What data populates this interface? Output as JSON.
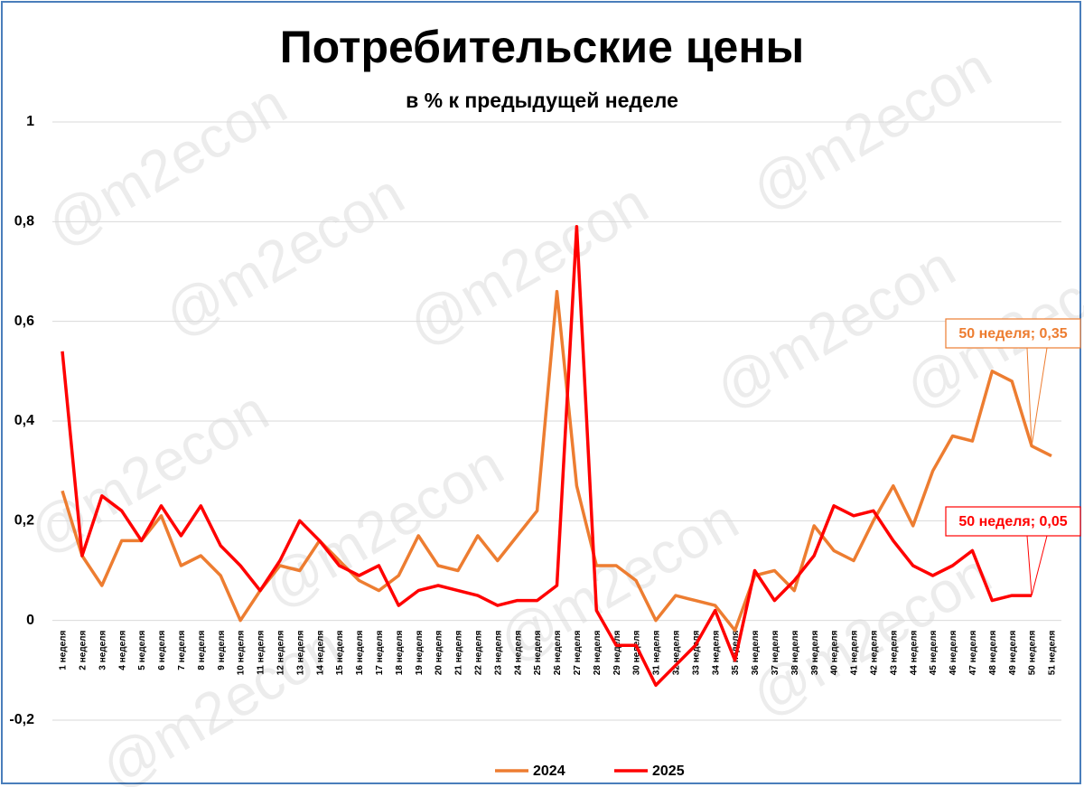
{
  "chart_data": {
    "type": "line",
    "title": "Потребительские цены",
    "subtitle": "в % к предыдущей неделе",
    "watermark": "@m2econ",
    "categories": [
      "1 неделя",
      "2 неделя",
      "3 неделя",
      "4 неделя",
      "5 неделя",
      "6 неделя",
      "7 неделя",
      "8 неделя",
      "9 неделя",
      "10 неделя",
      "11 неделя",
      "12 неделя",
      "13 неделя",
      "14 неделя",
      "15 неделя",
      "16 неделя",
      "17 неделя",
      "18 неделя",
      "19 неделя",
      "20 неделя",
      "21 неделя",
      "22 неделя",
      "23 неделя",
      "24 неделя",
      "25 неделя",
      "26 неделя",
      "27 неделя",
      "28 неделя",
      "29 неделя",
      "30 неделя",
      "31 неделя",
      "32 неделя",
      "33 неделя",
      "34 неделя",
      "35 неделя",
      "36 неделя",
      "37 неделя",
      "38 неделя",
      "39 неделя",
      "40 неделя",
      "41 неделя",
      "42 неделя",
      "43 неделя",
      "44 неделя",
      "45 неделя",
      "46 неделя",
      "47 неделя",
      "48 неделя",
      "49 неделя",
      "50 неделя",
      "51 неделя"
    ],
    "series": [
      {
        "name": "2024",
        "color": "#ed7d31",
        "values": [
          0.26,
          0.13,
          0.07,
          0.16,
          0.16,
          0.21,
          0.11,
          0.13,
          0.09,
          0.0,
          0.06,
          0.11,
          0.1,
          0.16,
          0.12,
          0.08,
          0.06,
          0.09,
          0.17,
          0.11,
          0.1,
          0.17,
          0.12,
          0.17,
          0.22,
          0.66,
          0.27,
          0.11,
          0.11,
          0.08,
          0.0,
          0.05,
          0.04,
          0.03,
          -0.02,
          0.09,
          0.1,
          0.06,
          0.19,
          0.14,
          0.12,
          0.2,
          0.27,
          0.19,
          0.3,
          0.37,
          0.36,
          0.5,
          0.48,
          0.35,
          0.33
        ],
        "value_labels": [
          null,
          null,
          null,
          null,
          null,
          null,
          null,
          null,
          null,
          null,
          null,
          null,
          null,
          null,
          null,
          null,
          null,
          null,
          null,
          null,
          null,
          null,
          null,
          null,
          null,
          null,
          null,
          null,
          null,
          null,
          null,
          null,
          null,
          null,
          null,
          null,
          null,
          null,
          null,
          null,
          null,
          null,
          null,
          null,
          null,
          null,
          null,
          null,
          null,
          "50 неделя; 0,35",
          null
        ]
      },
      {
        "name": "2025",
        "color": "#ff0000",
        "values": [
          0.54,
          0.13,
          0.25,
          0.22,
          0.16,
          0.23,
          0.17,
          0.23,
          0.15,
          0.11,
          0.06,
          0.12,
          0.2,
          0.16,
          0.11,
          0.09,
          0.11,
          0.03,
          0.06,
          0.07,
          0.06,
          0.05,
          0.03,
          0.04,
          0.04,
          0.07,
          0.79,
          0.02,
          -0.05,
          -0.05,
          -0.13,
          -0.09,
          -0.05,
          0.02,
          -0.08,
          0.1,
          0.04,
          0.08,
          0.13,
          0.23,
          0.21,
          0.22,
          0.16,
          0.11,
          0.09,
          0.11,
          0.14,
          0.04,
          0.05,
          0.05,
          null
        ],
        "value_labels": [
          null,
          null,
          null,
          null,
          null,
          null,
          null,
          null,
          null,
          null,
          null,
          null,
          null,
          null,
          null,
          null,
          null,
          null,
          null,
          null,
          null,
          null,
          null,
          null,
          null,
          null,
          null,
          null,
          null,
          null,
          null,
          null,
          null,
          null,
          null,
          null,
          null,
          null,
          null,
          null,
          null,
          null,
          null,
          null,
          null,
          null,
          null,
          null,
          null,
          "50 неделя; 0,05",
          null
        ]
      }
    ],
    "ylim": [
      -0.2,
      1
    ],
    "yticks": [
      {
        "value": -0.2,
        "label": "-0,2"
      },
      0,
      {
        "value": 0.2,
        "label": "0,2"
      },
      {
        "value": 0.4,
        "label": "0,4"
      },
      {
        "value": 0.6,
        "label": "0,6"
      },
      {
        "value": 0.8,
        "label": "0,8"
      },
      1
    ],
    "grid": true,
    "legend": "bottom"
  }
}
